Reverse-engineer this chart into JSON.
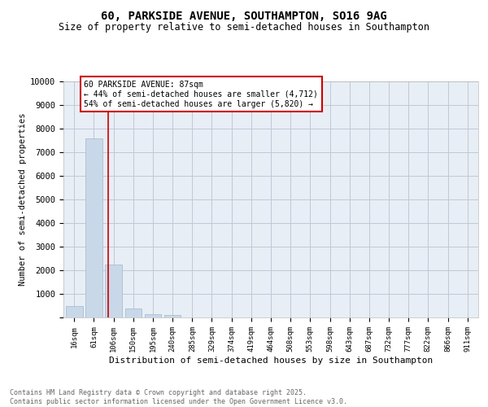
{
  "title": "60, PARKSIDE AVENUE, SOUTHAMPTON, SO16 9AG",
  "subtitle": "Size of property relative to semi-detached houses in Southampton",
  "xlabel": "Distribution of semi-detached houses by size in Southampton",
  "ylabel": "Number of semi-detached properties",
  "footer_line1": "Contains HM Land Registry data © Crown copyright and database right 2025.",
  "footer_line2": "Contains public sector information licensed under the Open Government Licence v3.0.",
  "bar_labels": [
    "16sqm",
    "61sqm",
    "106sqm",
    "150sqm",
    "195sqm",
    "240sqm",
    "285sqm",
    "329sqm",
    "374sqm",
    "419sqm",
    "464sqm",
    "508sqm",
    "553sqm",
    "598sqm",
    "643sqm",
    "687sqm",
    "732sqm",
    "777sqm",
    "822sqm",
    "866sqm",
    "911sqm"
  ],
  "bar_values": [
    480,
    7600,
    2230,
    370,
    130,
    120,
    0,
    0,
    0,
    0,
    0,
    0,
    0,
    0,
    0,
    0,
    0,
    0,
    0,
    0,
    0
  ],
  "bar_color": "#c8d8e8",
  "bar_edge_color": "#a0b8cc",
  "grid_color": "#c0c8d8",
  "background_color": "#e8eef5",
  "vline_x": 1.72,
  "vline_color": "#cc0000",
  "annotation_text": "60 PARKSIDE AVENUE: 87sqm\n← 44% of semi-detached houses are smaller (4,712)\n54% of semi-detached houses are larger (5,820) →",
  "ylim": [
    0,
    10000
  ],
  "yticks": [
    0,
    1000,
    2000,
    3000,
    4000,
    5000,
    6000,
    7000,
    8000,
    9000,
    10000
  ]
}
